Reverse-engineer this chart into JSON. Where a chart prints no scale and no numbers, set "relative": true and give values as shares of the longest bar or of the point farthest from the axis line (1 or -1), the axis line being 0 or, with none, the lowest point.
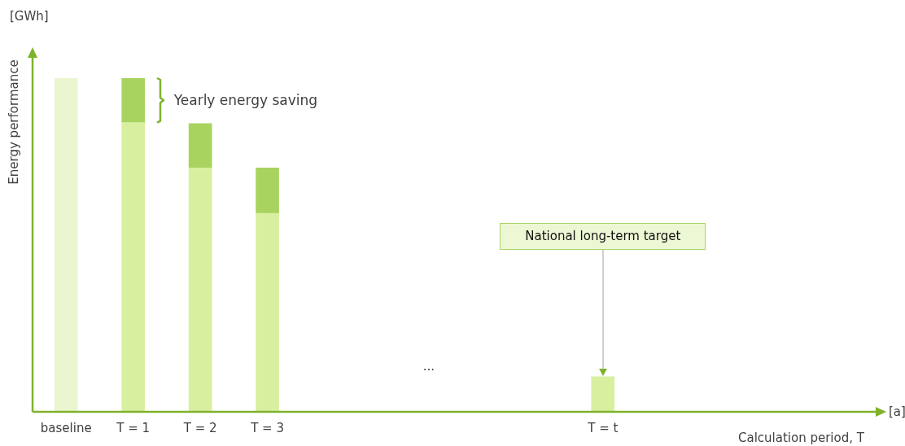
{
  "chart_data": {
    "type": "bar",
    "relative": true,
    "stacked": true,
    "legend": false,
    "grid": false,
    "ylabel": "Energy performance",
    "categories": [
      "baseline",
      "T = 1",
      "T = 2",
      "T = 3",
      null,
      null,
      null,
      null,
      "T = t"
    ],
    "series": [
      {
        "colors": [
          "#eaf6d0",
          "#d9efa0",
          "#d9efa0",
          "#d9efa0",
          "#d9efa0",
          "#d9efa0",
          "#d9efa0",
          "#d9efa0",
          "#d9efa0"
        ],
        "values": [
          1.0,
          0.867,
          0.731,
          0.595,
          null,
          null,
          null,
          null,
          0.105
        ]
      },
      {
        "color": "#a8d35f",
        "values": [
          null,
          0.133,
          0.133,
          0.136,
          null,
          null,
          null,
          null,
          null
        ]
      }
    ],
    "annotations": [
      "[GWh]",
      "[a]",
      "...",
      "Yearly energy saving",
      "National long-term target",
      "Calculation period, T"
    ]
  }
}
